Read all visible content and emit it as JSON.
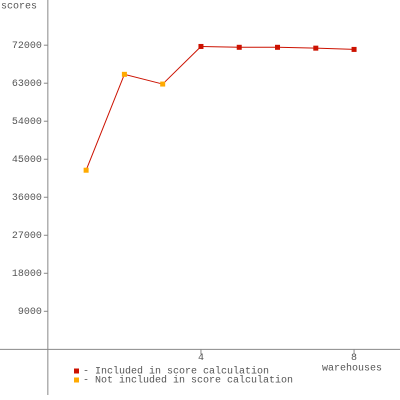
{
  "chart_data": {
    "type": "line",
    "y_label": "scores",
    "x_label": "warehouses",
    "x": [
      1,
      2,
      3,
      4,
      5,
      6,
      7,
      8
    ],
    "series": [
      {
        "name": "- Included in score calculation",
        "color": "#cc1100",
        "values": [
          null,
          null,
          null,
          71700,
          71500,
          71500,
          71300,
          71000
        ]
      },
      {
        "name": "- Not included in score calculation",
        "color": "#ffaa00",
        "values": [
          42400,
          65100,
          62800,
          null,
          null,
          null,
          null,
          null
        ]
      }
    ],
    "line_color": "#cc1100",
    "xlim": [
      -1.25,
      9.2
    ],
    "xticks": [
      4,
      8
    ],
    "ylim": [
      -12000,
      82700
    ],
    "yticks": [
      9000,
      18000,
      27000,
      36000,
      45000,
      54000,
      63000,
      72000
    ]
  }
}
